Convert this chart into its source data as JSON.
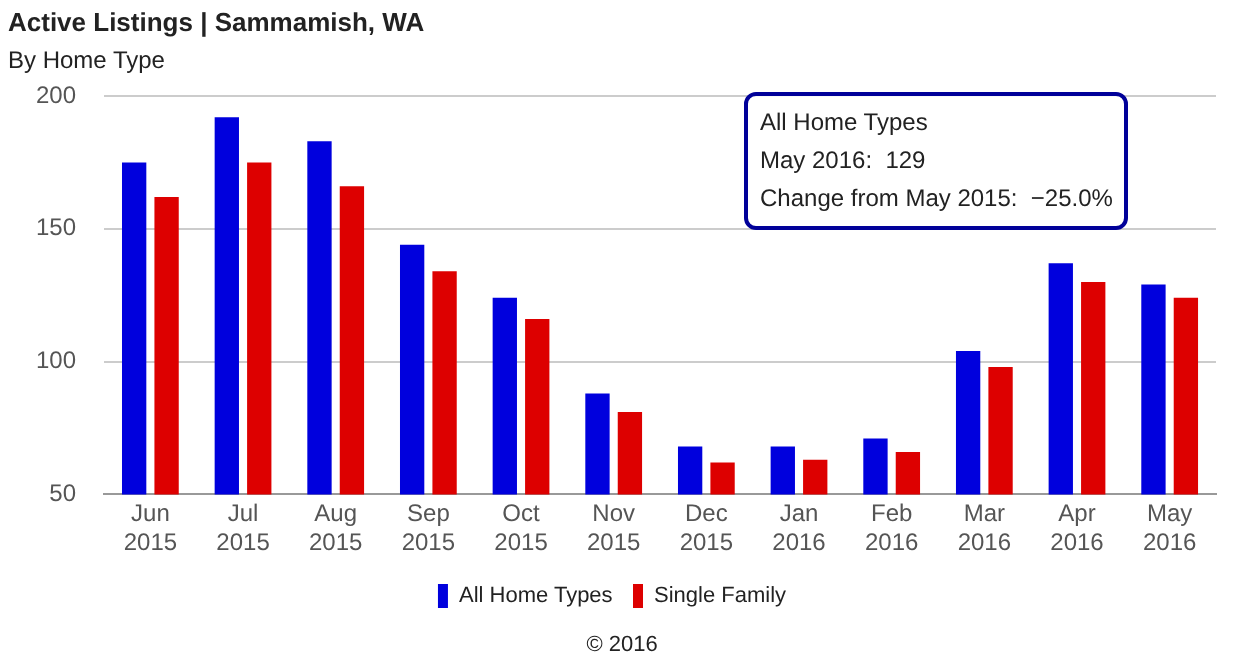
{
  "chart_data": {
    "type": "bar",
    "title": "Active Listings | Sammamish, WA",
    "subtitle": "By Home Type",
    "categories": [
      "Jun 2015",
      "Jul 2015",
      "Aug 2015",
      "Sep 2015",
      "Oct 2015",
      "Nov 2015",
      "Dec 2015",
      "Jan 2016",
      "Feb 2016",
      "Mar 2016",
      "Apr 2016",
      "May 2016"
    ],
    "series": [
      {
        "name": "All Home Types",
        "color": "#0000dd",
        "values": [
          175,
          192,
          183,
          144,
          124,
          88,
          68,
          68,
          71,
          104,
          137,
          129
        ]
      },
      {
        "name": "Single Family",
        "color": "#dd0000",
        "values": [
          162,
          175,
          166,
          134,
          116,
          81,
          62,
          63,
          66,
          98,
          130,
          124
        ]
      }
    ],
    "ylim": [
      50,
      200
    ],
    "yticks": [
      50,
      100,
      150,
      200
    ],
    "grid": "y",
    "legend": "bottom",
    "annotations": [
      "All Home Types",
      "May 2016:  129",
      "Change from May 2015:  −25.0%",
      "© 2016"
    ]
  }
}
